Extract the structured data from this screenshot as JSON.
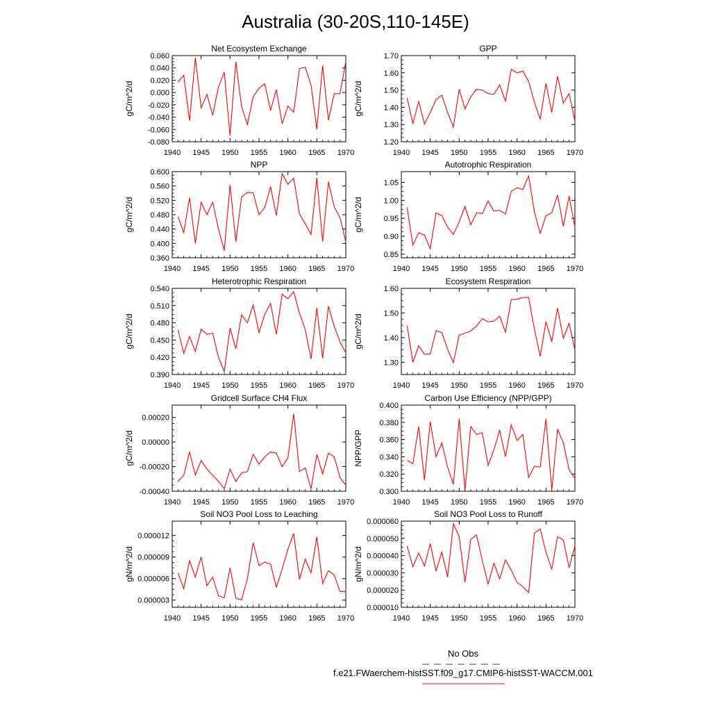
{
  "figure": {
    "title": "Australia (30-20S,110-145E)",
    "legend": {
      "placement": "bottom-right",
      "entries": [
        {
          "label": "No Obs",
          "color": "#3333cc",
          "style": "dashed"
        },
        {
          "label": "f.e21.FWaerchem-histSST.f09_g17.CMIP6-histSST-WACCM.001",
          "color": "#ff0000",
          "style": "solid"
        }
      ]
    }
  },
  "chart_data": [
    {
      "type": "line",
      "title": "Net Ecosystem Exchange",
      "ylabel": "gC/m^2/d",
      "xlim": [
        1940,
        1970
      ],
      "ylim": [
        -0.08,
        0.06
      ],
      "yticks": [
        -0.08,
        -0.06,
        -0.04,
        -0.02,
        0.0,
        0.02,
        0.04,
        0.06
      ],
      "ytick_labels": [
        "-0.080",
        "-0.060",
        "-0.040",
        "-0.020",
        "0.000",
        "0.020",
        "0.040",
        "0.060"
      ],
      "xticks": [
        1940,
        1945,
        1950,
        1955,
        1960,
        1965,
        1970
      ],
      "xtick_labels": [
        "1940",
        "1945",
        "1950",
        "1955",
        "1960",
        "1965",
        "1970"
      ],
      "color": "#ff0000",
      "x": [
        1941,
        1942,
        1943,
        1944,
        1945,
        1946,
        1947,
        1948,
        1949,
        1950,
        1951,
        1952,
        1953,
        1954,
        1955,
        1956,
        1957,
        1958,
        1959,
        1960,
        1961,
        1962,
        1963,
        1964,
        1965,
        1966,
        1967,
        1968,
        1969,
        1970
      ],
      "values": [
        0.017,
        0.028,
        -0.046,
        0.057,
        -0.025,
        -0.003,
        -0.037,
        0.009,
        0.033,
        -0.07,
        0.05,
        -0.023,
        -0.052,
        -0.007,
        0.007,
        0.014,
        -0.029,
        0.005,
        -0.051,
        -0.022,
        -0.032,
        0.039,
        0.041,
        0.012,
        -0.06,
        0.044,
        -0.045,
        -0.002,
        -0.002,
        0.05
      ]
    },
    {
      "type": "line",
      "title": "GPP",
      "ylabel": "gC/m^2/d",
      "xlim": [
        1940,
        1970
      ],
      "ylim": [
        1.2,
        1.7
      ],
      "yticks": [
        1.2,
        1.3,
        1.4,
        1.5,
        1.6,
        1.7
      ],
      "ytick_labels": [
        "1.20",
        "1.30",
        "1.40",
        "1.50",
        "1.60",
        "1.70"
      ],
      "xticks": [
        1940,
        1945,
        1950,
        1955,
        1960,
        1965,
        1970
      ],
      "xtick_labels": [
        "1940",
        "1945",
        "1950",
        "1955",
        "1960",
        "1965",
        "1970"
      ],
      "color": "#ff0000",
      "x": [
        1941,
        1942,
        1943,
        1944,
        1945,
        1946,
        1947,
        1948,
        1949,
        1950,
        1951,
        1952,
        1953,
        1954,
        1955,
        1956,
        1957,
        1958,
        1959,
        1960,
        1961,
        1962,
        1963,
        1964,
        1965,
        1966,
        1967,
        1968,
        1969,
        1970
      ],
      "values": [
        1.455,
        1.305,
        1.435,
        1.303,
        1.37,
        1.445,
        1.47,
        1.37,
        1.285,
        1.505,
        1.39,
        1.46,
        1.505,
        1.5,
        1.48,
        1.475,
        1.53,
        1.435,
        1.62,
        1.6,
        1.61,
        1.55,
        1.43,
        1.33,
        1.54,
        1.37,
        1.58,
        1.425,
        1.48,
        1.32
      ]
    },
    {
      "type": "line",
      "title": "NPP",
      "ylabel": "gC/m^2/d",
      "xlim": [
        1940,
        1970
      ],
      "ylim": [
        0.36,
        0.6
      ],
      "yticks": [
        0.36,
        0.4,
        0.44,
        0.48,
        0.52,
        0.56,
        0.6
      ],
      "ytick_labels": [
        "0.360",
        "0.400",
        "0.440",
        "0.480",
        "0.520",
        "0.560",
        "0.600"
      ],
      "xticks": [
        1940,
        1945,
        1950,
        1955,
        1960,
        1965,
        1970
      ],
      "xtick_labels": [
        "1940",
        "1945",
        "1950",
        "1955",
        "1960",
        "1965",
        "1970"
      ],
      "color": "#ff0000",
      "x": [
        1941,
        1942,
        1943,
        1944,
        1945,
        1946,
        1947,
        1948,
        1949,
        1950,
        1951,
        1952,
        1953,
        1954,
        1955,
        1956,
        1957,
        1958,
        1959,
        1960,
        1961,
        1962,
        1963,
        1964,
        1965,
        1966,
        1967,
        1968,
        1969,
        1970
      ],
      "values": [
        0.475,
        0.43,
        0.527,
        0.4,
        0.515,
        0.48,
        0.515,
        0.44,
        0.38,
        0.563,
        0.405,
        0.53,
        0.542,
        0.541,
        0.48,
        0.5,
        0.558,
        0.478,
        0.594,
        0.565,
        0.582,
        0.482,
        0.455,
        0.425,
        0.583,
        0.405,
        0.572,
        0.502,
        0.472,
        0.405
      ]
    },
    {
      "type": "line",
      "title": "Autotrophic Respiration",
      "ylabel": "gC/m^2/d",
      "xlim": [
        1940,
        1970
      ],
      "ylim": [
        0.84,
        1.08
      ],
      "yticks": [
        0.85,
        0.9,
        0.95,
        1.0,
        1.05
      ],
      "ytick_labels": [
        "0.85",
        "0.90",
        "0.95",
        "1.00",
        "1.05"
      ],
      "xticks": [
        1940,
        1945,
        1950,
        1955,
        1960,
        1965,
        1970
      ],
      "xtick_labels": [
        "1940",
        "1945",
        "1950",
        "1955",
        "1960",
        "1965",
        "1970"
      ],
      "color": "#ff0000",
      "x": [
        1941,
        1942,
        1943,
        1944,
        1945,
        1946,
        1947,
        1948,
        1949,
        1950,
        1951,
        1952,
        1953,
        1954,
        1955,
        1956,
        1957,
        1958,
        1959,
        1960,
        1961,
        1962,
        1963,
        1964,
        1965,
        1966,
        1967,
        1968,
        1969,
        1970
      ],
      "values": [
        0.98,
        0.875,
        0.91,
        0.903,
        0.865,
        0.965,
        0.958,
        0.925,
        0.905,
        0.94,
        0.983,
        0.932,
        0.965,
        0.963,
        0.998,
        0.97,
        0.972,
        0.962,
        1.025,
        1.035,
        1.03,
        1.068,
        0.968,
        0.908,
        0.957,
        0.965,
        1.015,
        0.928,
        1.012,
        0.925
      ]
    },
    {
      "type": "line",
      "title": "Heterotrophic Respiration",
      "ylabel": "gC/m^2/d",
      "xlim": [
        1940,
        1970
      ],
      "ylim": [
        0.39,
        0.54
      ],
      "yticks": [
        0.39,
        0.42,
        0.45,
        0.48,
        0.51,
        0.54
      ],
      "ytick_labels": [
        "0.390",
        "0.420",
        "0.450",
        "0.480",
        "0.510",
        "0.540"
      ],
      "xticks": [
        1940,
        1945,
        1950,
        1955,
        1960,
        1965,
        1970
      ],
      "xtick_labels": [
        "1940",
        "1945",
        "1950",
        "1955",
        "1960",
        "1965",
        "1970"
      ],
      "color": "#ff0000",
      "x": [
        1941,
        1942,
        1943,
        1944,
        1945,
        1946,
        1947,
        1948,
        1949,
        1950,
        1951,
        1952,
        1953,
        1954,
        1955,
        1956,
        1957,
        1958,
        1959,
        1960,
        1961,
        1962,
        1963,
        1964,
        1965,
        1966,
        1967,
        1968,
        1969,
        1970
      ],
      "values": [
        0.468,
        0.427,
        0.456,
        0.43,
        0.469,
        0.46,
        0.462,
        0.42,
        0.395,
        0.471,
        0.435,
        0.494,
        0.48,
        0.511,
        0.463,
        0.495,
        0.514,
        0.46,
        0.53,
        0.522,
        0.534,
        0.497,
        0.468,
        0.417,
        0.506,
        0.418,
        0.509,
        0.474,
        0.447,
        0.428
      ]
    },
    {
      "type": "line",
      "title": "Ecosystem Respiration",
      "ylabel": "gC/m^2/d",
      "xlim": [
        1940,
        1970
      ],
      "ylim": [
        1.25,
        1.6
      ],
      "yticks": [
        1.3,
        1.4,
        1.5,
        1.6
      ],
      "ytick_labels": [
        "1.30",
        "1.40",
        "1.50",
        "1.60"
      ],
      "xticks": [
        1940,
        1945,
        1950,
        1955,
        1960,
        1965,
        1970
      ],
      "xtick_labels": [
        "1940",
        "1945",
        "1950",
        "1955",
        "1960",
        "1965",
        "1970"
      ],
      "color": "#ff0000",
      "x": [
        1941,
        1942,
        1943,
        1944,
        1945,
        1946,
        1947,
        1948,
        1949,
        1950,
        1951,
        1952,
        1953,
        1954,
        1955,
        1956,
        1957,
        1958,
        1959,
        1960,
        1961,
        1962,
        1963,
        1964,
        1965,
        1966,
        1967,
        1968,
        1969,
        1970
      ],
      "values": [
        1.448,
        1.3,
        1.367,
        1.332,
        1.333,
        1.428,
        1.421,
        1.352,
        1.298,
        1.41,
        1.418,
        1.427,
        1.447,
        1.477,
        1.464,
        1.467,
        1.487,
        1.422,
        1.555,
        1.555,
        1.563,
        1.563,
        1.435,
        1.323,
        1.465,
        1.383,
        1.52,
        1.397,
        1.458,
        1.35
      ]
    },
    {
      "type": "line",
      "title": "Gridcell Surface CH4 Flux",
      "ylabel": "gC/m^2/d",
      "xlim": [
        1940,
        1970
      ],
      "ylim": [
        -0.0004,
        0.0003
      ],
      "yticks": [
        -0.0004,
        -0.0002,
        0.0,
        0.0002
      ],
      "ytick_labels": [
        "-0.00040",
        "-0.00020",
        "0.00000",
        "0.00020"
      ],
      "xticks": [
        1940,
        1945,
        1950,
        1955,
        1960,
        1965,
        1970
      ],
      "xtick_labels": [
        "1940",
        "1945",
        "1950",
        "1955",
        "1960",
        "1965",
        "1970"
      ],
      "color": "#ff0000",
      "x": [
        1941,
        1942,
        1943,
        1944,
        1945,
        1946,
        1947,
        1948,
        1949,
        1950,
        1951,
        1952,
        1953,
        1954,
        1955,
        1956,
        1957,
        1958,
        1959,
        1960,
        1961,
        1962,
        1963,
        1964,
        1965,
        1966,
        1967,
        1968,
        1969,
        1970
      ],
      "values": [
        -0.00032,
        -0.00027,
        -8e-05,
        -0.00027,
        -0.00015,
        -0.00022,
        -0.00027,
        -0.00032,
        -0.00038,
        -0.00022,
        -0.00032,
        -0.00025,
        -0.00024,
        -0.0001,
        -0.00018,
        -0.00012,
        -8e-05,
        -9e-05,
        -0.0002,
        -0.00013,
        0.00023,
        -0.00024,
        -0.00021,
        -0.00038,
        -0.0001,
        -0.00026,
        -9e-05,
        -0.00012,
        -0.00029,
        -0.00035
      ]
    },
    {
      "type": "line",
      "title": "Carbon Use Efficiency (NPP/GPP)",
      "ylabel": "NPP/GPP",
      "xlim": [
        1940,
        1970
      ],
      "ylim": [
        0.3,
        0.4
      ],
      "yticks": [
        0.3,
        0.32,
        0.34,
        0.36,
        0.38,
        0.4
      ],
      "ytick_labels": [
        "0.300",
        "0.320",
        "0.340",
        "0.360",
        "0.380",
        "0.400"
      ],
      "xticks": [
        1940,
        1945,
        1950,
        1955,
        1960,
        1965,
        1970
      ],
      "xtick_labels": [
        "1940",
        "1945",
        "1950",
        "1955",
        "1960",
        "1965",
        "1970"
      ],
      "color": "#ff0000",
      "x": [
        1941,
        1942,
        1943,
        1944,
        1945,
        1946,
        1947,
        1948,
        1949,
        1950,
        1951,
        1952,
        1953,
        1954,
        1955,
        1956,
        1957,
        1958,
        1959,
        1960,
        1961,
        1962,
        1963,
        1964,
        1965,
        1966,
        1967,
        1968,
        1969,
        1970
      ],
      "values": [
        0.336,
        0.332,
        0.375,
        0.313,
        0.381,
        0.34,
        0.356,
        0.328,
        0.308,
        0.384,
        0.301,
        0.375,
        0.366,
        0.368,
        0.33,
        0.348,
        0.371,
        0.34,
        0.377,
        0.359,
        0.366,
        0.316,
        0.329,
        0.328,
        0.384,
        0.301,
        0.372,
        0.356,
        0.325,
        0.315
      ]
    },
    {
      "type": "line",
      "title": "Soil NO3 Pool Loss to Leaching",
      "ylabel": "gN/m^2/d",
      "xlim": [
        1940,
        1970
      ],
      "ylim": [
        2e-06,
        1.4e-05
      ],
      "yticks": [
        3e-06,
        6e-06,
        9e-06,
        1.2e-05
      ],
      "ytick_labels": [
        "0.000003",
        "0.000006",
        "0.000009",
        "0.000012"
      ],
      "xticks": [
        1940,
        1945,
        1950,
        1955,
        1960,
        1965,
        1970
      ],
      "xtick_labels": [
        "1940",
        "1945",
        "1950",
        "1955",
        "1960",
        "1965",
        "1970"
      ],
      "color": "#ff0000",
      "x": [
        1941,
        1942,
        1943,
        1944,
        1945,
        1946,
        1947,
        1948,
        1949,
        1950,
        1951,
        1952,
        1953,
        1954,
        1955,
        1956,
        1957,
        1958,
        1959,
        1960,
        1961,
        1962,
        1963,
        1964,
        1965,
        1966,
        1967,
        1968,
        1969,
        1970
      ],
      "values": [
        6.8e-06,
        4.6e-06,
        8.5e-06,
        6.2e-06,
        9e-06,
        5e-06,
        6.2e-06,
        3.6e-06,
        3.3e-06,
        7.5e-06,
        3.3e-06,
        3e-06,
        6e-06,
        1.1e-05,
        7.8e-06,
        8.3e-06,
        8e-06,
        4.8e-06,
        7.3e-06,
        1.01e-05,
        1.23e-05,
        5.9e-06,
        8.7e-06,
        6.8e-06,
        1.18e-05,
        5.3e-06,
        7.1e-06,
        6.5e-06,
        4.2e-06,
        4.2e-06
      ]
    },
    {
      "type": "line",
      "title": "Soil NO3 Pool Loss to Runoff",
      "ylabel": "gN/m^2/d",
      "xlim": [
        1940,
        1970
      ],
      "ylim": [
        1e-05,
        6e-05
      ],
      "yticks": [
        1e-05,
        2e-05,
        3e-05,
        4e-05,
        5e-05,
        6e-05
      ],
      "ytick_labels": [
        "0.000010",
        "0.000020",
        "0.000030",
        "0.000040",
        "0.000050",
        "0.000060"
      ],
      "xticks": [
        1940,
        1945,
        1950,
        1955,
        1960,
        1965,
        1970
      ],
      "xtick_labels": [
        "1940",
        "1945",
        "1950",
        "1955",
        "1960",
        "1965",
        "1970"
      ],
      "color": "#ff0000",
      "x": [
        1941,
        1942,
        1943,
        1944,
        1945,
        1946,
        1947,
        1948,
        1949,
        1950,
        1951,
        1952,
        1953,
        1954,
        1955,
        1956,
        1957,
        1958,
        1959,
        1960,
        1961,
        1962,
        1963,
        1964,
        1965,
        1966,
        1967,
        1968,
        1969,
        1970
      ],
      "values": [
        4.55e-05,
        3.35e-05,
        4.15e-05,
        3.4e-05,
        4.7e-05,
        3.1e-05,
        4.2e-05,
        2.75e-05,
        5.85e-05,
        5.1e-05,
        2.45e-05,
        4.95e-05,
        5.2e-05,
        3.7e-05,
        2.35e-05,
        3.55e-05,
        2.65e-05,
        3.75e-05,
        3.15e-05,
        2.45e-05,
        2.2e-05,
        1.85e-05,
        5.3e-05,
        5.55e-05,
        4.2e-05,
        3.2e-05,
        5.1e-05,
        4.9e-05,
        3.3e-05,
        4.55e-05
      ]
    }
  ]
}
